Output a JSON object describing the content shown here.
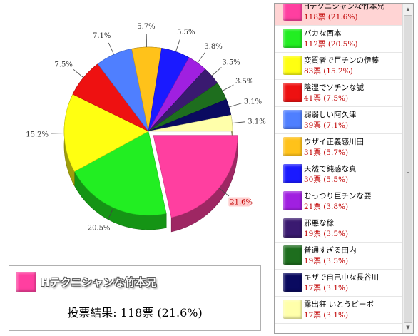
{
  "chart_data": {
    "type": "pie",
    "slices": [
      {
        "name": "Hテクニシャンな竹本兄",
        "votes": "118票",
        "percent": 21.6,
        "label": "21.6%",
        "color": "#ff3fa0",
        "highlighted": true
      },
      {
        "name": "バカな西本",
        "votes": "112票",
        "percent": 20.5,
        "label": "20.5%",
        "color": "#22ee22"
      },
      {
        "name": "変質者で巨チンの伊藤",
        "votes": "83票",
        "percent": 15.2,
        "label": "15.2%",
        "color": "#ffff11"
      },
      {
        "name": "陰湿でソチンな誠",
        "votes": "41票",
        "percent": 7.5,
        "label": "7.5%",
        "color": "#ee1111"
      },
      {
        "name": "弱弱しい阿久津",
        "votes": "39票",
        "percent": 7.1,
        "label": "7.1%",
        "color": "#4f7fff"
      },
      {
        "name": "ウザイ正義感川田",
        "votes": "31票",
        "percent": 5.7,
        "label": "5.7%",
        "color": "#ffc21a"
      },
      {
        "name": "天然で鈍感な真",
        "votes": "30票",
        "percent": 5.5,
        "label": "5.5%",
        "color": "#1a1aff"
      },
      {
        "name": "むっつり巨チンな要",
        "votes": "21票",
        "percent": 3.8,
        "label": "3.8%",
        "color": "#a020e0"
      },
      {
        "name": "邪悪な稔",
        "votes": "19票",
        "percent": 3.5,
        "label": "3.5%",
        "color": "#3a1a70"
      },
      {
        "name": "普通すぎる田内",
        "votes": "19票",
        "percent": 3.5,
        "label": "3.5%",
        "color": "#1e6e1e"
      },
      {
        "name": "キザで自己中な長谷川",
        "votes": "17票",
        "percent": 3.1,
        "label": "3.1%",
        "color": "#0a0a60"
      },
      {
        "name": "露出狂 いとうピーボ",
        "votes": "17票",
        "percent": 3.1,
        "label": "3.1%",
        "color": "#ffffaa"
      }
    ]
  },
  "legend": {
    "items": [
      {
        "name": "Hテクニシャンな竹本兄",
        "votes_text": "118票 (21.6%)",
        "color": "#ff3fa0",
        "selected": true
      },
      {
        "name": "バカな西本",
        "votes_text": "112票 (20.5%)",
        "color": "#22ee22"
      },
      {
        "name": "変質者で巨チンの伊藤",
        "votes_text": "83票 (15.2%)",
        "color": "#ffff11"
      },
      {
        "name": "陰湿でソチンな誠",
        "votes_text": "41票 (7.5%)",
        "color": "#ee1111"
      },
      {
        "name": "弱弱しい阿久津",
        "votes_text": "39票 (7.1%)",
        "color": "#4f7fff"
      },
      {
        "name": "ウザイ正義感川田",
        "votes_text": "31票 (5.7%)",
        "color": "#ffc21a"
      },
      {
        "name": "天然で鈍感な真",
        "votes_text": "30票 (5.5%)",
        "color": "#1a1aff"
      },
      {
        "name": "むっつり巨チンな要",
        "votes_text": "21票 (3.8%)",
        "color": "#a020e0"
      },
      {
        "name": "邪悪な稔",
        "votes_text": "19票 (3.5%)",
        "color": "#3a1a70"
      },
      {
        "name": "普通すぎる田内",
        "votes_text": "19票 (3.5%)",
        "color": "#1e6e1e"
      },
      {
        "name": "キザで自己中な長谷川",
        "votes_text": "17票 (3.1%)",
        "color": "#0a0a60"
      },
      {
        "name": "露出狂 いとうピーボ",
        "votes_text": "17票 (3.1%)",
        "color": "#ffffaa"
      }
    ]
  },
  "info": {
    "name": "Hテクニシャンな竹本兄",
    "color": "#ff3fa0",
    "result": "投票結果: 118票 (21.6%)"
  },
  "scrollbar": {
    "up_icon": "triangle-up-icon",
    "down_icon": "triangle-down-icon"
  }
}
